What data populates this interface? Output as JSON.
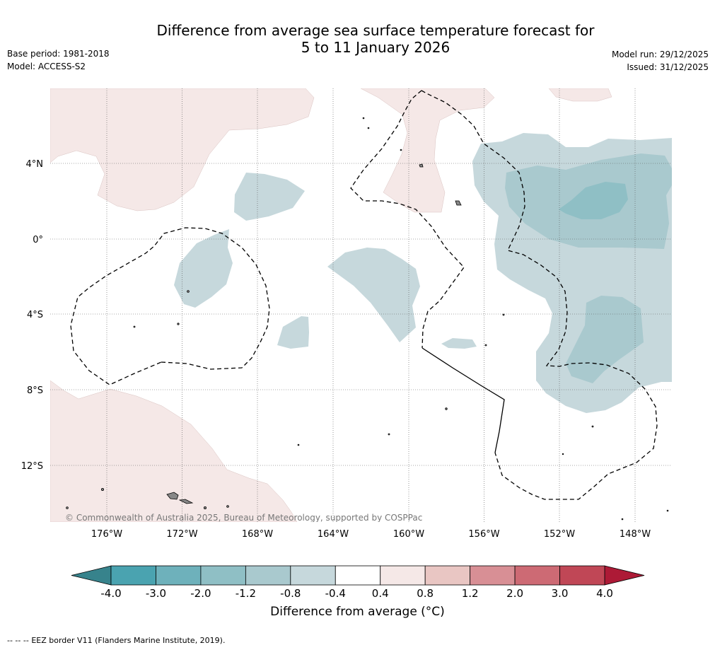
{
  "header": {
    "title_line1": "Difference from average sea surface temperature forecast for",
    "title_line2": "5 to 11 January 2026",
    "base_period": "Base period: 1981-2018",
    "model": "Model: ACCESS-S2",
    "model_run": "Model run: 29/12/2025",
    "issued": "Issued: 31/12/2025"
  },
  "map": {
    "lon_labels": [
      "176°W",
      "172°W",
      "168°W",
      "164°W",
      "160°W",
      "156°W",
      "152°W",
      "148°W"
    ],
    "lat_labels": [
      "4°N",
      "0°",
      "4°S",
      "8°S",
      "12°S"
    ],
    "copyright": "© Commonwealth of Australia 2025, Bureau of Meteorology, supported by COSPPac",
    "land_color": "#888888"
  },
  "colorbar": {
    "ticks": [
      "-4.0",
      "-3.0",
      "-2.0",
      "-1.2",
      "-0.8",
      "-0.4",
      "0.4",
      "0.8",
      "1.2",
      "2.0",
      "3.0",
      "4.0"
    ],
    "colors": [
      "#4aa3b0",
      "#6eb1bb",
      "#8fbfc5",
      "#a9c9ce",
      "#c6d8dc",
      "#ffffff",
      "#f5e8e7",
      "#e9c6c3",
      "#d88f95",
      "#cd6a74",
      "#c04756"
    ],
    "under_color": "#37838c",
    "over_color": "#ad1a36",
    "label": "Difference from average (°C)"
  },
  "footer": {
    "legend_symbol": "-- -- --",
    "eez_note": "EEZ border V11 (Flanders Marine Institute, 2019)."
  }
}
